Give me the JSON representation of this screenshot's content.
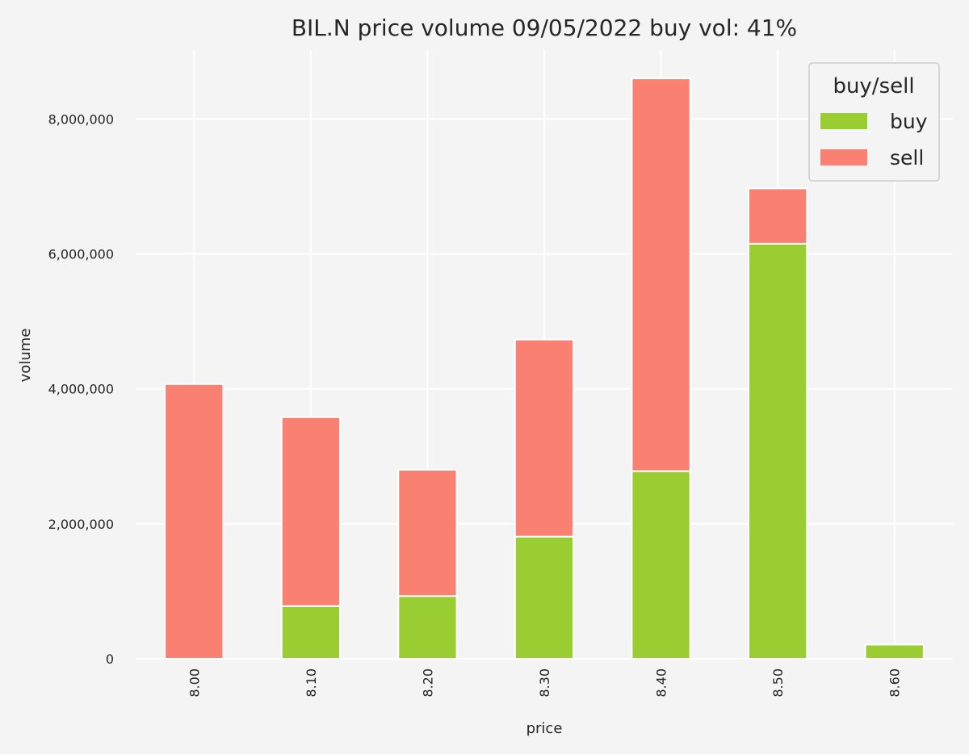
{
  "chart_data": {
    "type": "bar",
    "stacked": true,
    "title": "BIL.N price volume 09/05/2022 buy vol: 41%",
    "xlabel": "price",
    "ylabel": "volume",
    "categories": [
      "8.00",
      "8.10",
      "8.20",
      "8.30",
      "8.40",
      "8.50",
      "8.60"
    ],
    "series": [
      {
        "name": "buy",
        "color": "#9acd32",
        "values": [
          0,
          780000,
          930000,
          1810000,
          2780000,
          6150000,
          210000
        ]
      },
      {
        "name": "sell",
        "color": "#fa8072",
        "values": [
          4070000,
          2800000,
          1870000,
          2920000,
          5820000,
          820000,
          0
        ]
      }
    ],
    "yticks": [
      0,
      2000000,
      4000000,
      6000000,
      8000000
    ],
    "ytick_labels": [
      "0",
      "2,000,000",
      "4,000,000",
      "6,000,000",
      "8,000,000"
    ],
    "ylim": [
      0,
      9020000
    ],
    "legend": {
      "title": "buy/sell",
      "placement": "top-right"
    },
    "grid": true
  }
}
